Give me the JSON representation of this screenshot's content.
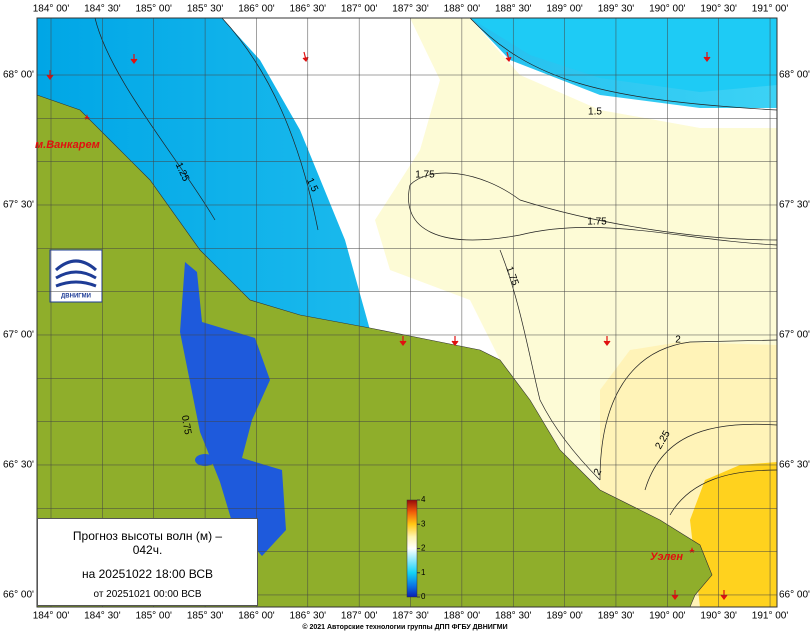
{
  "map": {
    "longitude_labels": [
      "184° 00'",
      "184° 30'",
      "185° 00'",
      "185° 30'",
      "186° 00'",
      "186° 30'",
      "187° 00'",
      "187° 30'",
      "188° 00'",
      "188° 30'",
      "189° 00'",
      "189° 30'",
      "190° 00'",
      "190° 30'",
      "191° 00'"
    ],
    "latitude_labels": [
      "68° 00'",
      "67° 30'",
      "67° 00'",
      "66° 30'",
      "66° 00'"
    ],
    "contour_labels": [
      "1.5",
      "1.75",
      "1.75",
      "1.75",
      "2",
      "2",
      "2.25",
      "1.25",
      "1.5",
      "0.75"
    ],
    "places": [
      "м.Ванкарем",
      "Уэлен"
    ],
    "logo": "ДВНИГМИ",
    "legend": {
      "title": "Прогноз высоты волн (м) – 042ч.",
      "forecast_time": "на 20251022 18:00 ВСВ",
      "issued": "от 20251021 00:00 ВСВ"
    },
    "colorbar_ticks": [
      0,
      1,
      2,
      3,
      4
    ],
    "copyright": "© 2021 Авторские технологии группы ДПП ФГБУ ДВНИГМИ"
  }
}
